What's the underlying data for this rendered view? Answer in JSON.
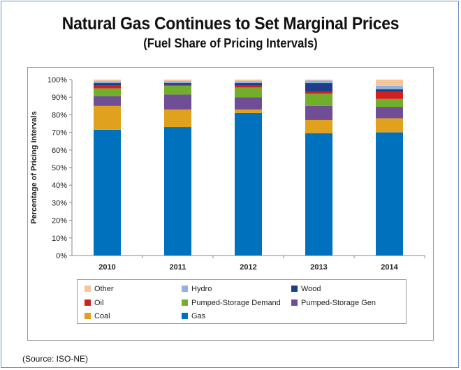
{
  "title": "Natural Gas Continues to Set Marginal Prices",
  "subtitle": "(Fuel Share of Pricing Intervals)",
  "source": "(Source: ISO-NE)",
  "chart_data": {
    "type": "bar",
    "stacked": true,
    "categories": [
      "2010",
      "2011",
      "2012",
      "2013",
      "2014"
    ],
    "ylabel": "Percentage of Pricing Intervals",
    "xlabel": "",
    "ylim": [
      0,
      100
    ],
    "yticks": [
      "0%",
      "10%",
      "20%",
      "30%",
      "40%",
      "50%",
      "60%",
      "70%",
      "80%",
      "90%",
      "100%"
    ],
    "yticks_values": [
      0,
      10,
      20,
      30,
      40,
      50,
      60,
      70,
      80,
      90,
      100
    ],
    "grid": false,
    "legend_position": "bottom",
    "series": [
      {
        "name": "Gas",
        "color": "#0072bd",
        "values": [
          71.5,
          73,
          81,
          69.5,
          70
        ]
      },
      {
        "name": "Coal",
        "color": "#e0a21e",
        "values": [
          13.5,
          10,
          2,
          7.5,
          8
        ]
      },
      {
        "name": "Pumped-Storage Gen",
        "color": "#6f4e96",
        "values": [
          5.5,
          8.5,
          7,
          8,
          6.5
        ]
      },
      {
        "name": "Pumped-Storage Demand",
        "color": "#72ad2b",
        "values": [
          4.5,
          5,
          5.5,
          7,
          4.5
        ]
      },
      {
        "name": "Oil",
        "color": "#d41f1f",
        "values": [
          1.5,
          0.5,
          1,
          1,
          4
        ]
      },
      {
        "name": "Wood",
        "color": "#1d3f8a",
        "values": [
          1.5,
          1,
          1.5,
          5,
          1.5
        ]
      },
      {
        "name": "Hydro",
        "color": "#8fb3de",
        "values": [
          1,
          1,
          1,
          1.5,
          2
        ]
      },
      {
        "name": "Other",
        "color": "#f8c49a",
        "values": [
          1,
          1,
          1,
          0.5,
          3.5
        ]
      }
    ],
    "legend_order": [
      "Other",
      "Hydro",
      "Wood",
      "Oil",
      "Pumped-Storage Demand",
      "Pumped-Storage Gen",
      "Coal",
      "Gas"
    ]
  }
}
